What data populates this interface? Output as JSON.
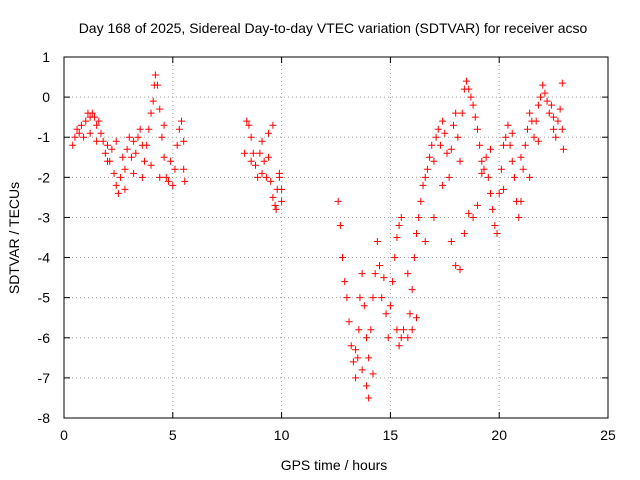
{
  "chart_data": {
    "type": "scatter",
    "title": "Day 168 of 2025, Sidereal Day-to-day VTEC variation (SDTVAR) for receiver acso",
    "xlabel": "GPS time / hours",
    "ylabel": "SDTVAR / TECUs",
    "xlim": [
      0,
      25
    ],
    "ylim": [
      -8,
      1
    ],
    "x_ticks": [
      "0",
      "5",
      "10",
      "15",
      "20",
      "25"
    ],
    "y_ticks": [
      "-8",
      "-7",
      "-6",
      "-5",
      "-4",
      "-3",
      "-2",
      "-1",
      "0",
      "1"
    ],
    "x_tick_values": [
      0,
      5,
      10,
      15,
      20,
      25
    ],
    "y_tick_values": [
      -8,
      -7,
      -6,
      -5,
      -4,
      -3,
      -2,
      -1,
      0,
      1
    ],
    "grid": true,
    "legend": "none",
    "marker": "+",
    "color": "#ff0000",
    "series": [
      {
        "points": [
          [
            0.4,
            -1.2
          ],
          [
            0.5,
            -1.0
          ],
          [
            0.6,
            -0.8
          ],
          [
            0.7,
            -0.9
          ],
          [
            0.8,
            -0.7
          ],
          [
            0.9,
            -1.0
          ],
          [
            1.0,
            -0.6
          ],
          [
            1.1,
            -0.4
          ],
          [
            1.2,
            -0.5
          ],
          [
            1.3,
            -0.4
          ],
          [
            1.4,
            -0.5
          ],
          [
            1.5,
            -0.7
          ],
          [
            1.6,
            -0.6
          ],
          [
            1.7,
            -0.9
          ],
          [
            1.8,
            -1.1
          ],
          [
            1.9,
            -1.4
          ],
          [
            2.0,
            -1.2
          ],
          [
            2.1,
            -1.6
          ],
          [
            2.2,
            -1.3
          ],
          [
            2.3,
            -1.9
          ],
          [
            2.4,
            -2.2
          ],
          [
            2.5,
            -2.4
          ],
          [
            2.6,
            -2.0
          ],
          [
            2.7,
            -1.5
          ],
          [
            2.8,
            -1.8
          ],
          [
            2.9,
            -1.3
          ],
          [
            3.0,
            -1.0
          ],
          [
            3.1,
            -1.5
          ],
          [
            3.2,
            -1.9
          ],
          [
            3.3,
            -1.4
          ],
          [
            3.4,
            -1.0
          ],
          [
            3.5,
            -0.8
          ],
          [
            3.6,
            -1.2
          ],
          [
            3.7,
            -1.6
          ],
          [
            3.8,
            -1.2
          ],
          [
            3.9,
            -0.8
          ],
          [
            4.0,
            -0.4
          ],
          [
            4.1,
            -0.1
          ],
          [
            4.15,
            0.3
          ],
          [
            4.2,
            0.55
          ],
          [
            4.3,
            0.3
          ],
          [
            4.4,
            -0.3
          ],
          [
            4.5,
            -1.0
          ],
          [
            4.6,
            -1.5
          ],
          [
            4.7,
            -2.0
          ],
          [
            4.8,
            -2.1
          ],
          [
            4.9,
            -1.6
          ],
          [
            5.0,
            -2.2
          ],
          [
            5.1,
            -1.8
          ],
          [
            5.2,
            -1.2
          ],
          [
            5.3,
            -0.8
          ],
          [
            5.4,
            -0.6
          ],
          [
            5.5,
            -1.1
          ],
          [
            5.5,
            -1.8
          ],
          [
            5.55,
            -2.1
          ],
          [
            1.2,
            -0.9
          ],
          [
            1.5,
            -1.1
          ],
          [
            2.0,
            -1.6
          ],
          [
            2.4,
            -1.1
          ],
          [
            2.8,
            -2.3
          ],
          [
            3.2,
            -1.1
          ],
          [
            3.6,
            -2.0
          ],
          [
            4.0,
            -1.7
          ],
          [
            4.4,
            -2.0
          ],
          [
            4.6,
            -0.7
          ],
          [
            8.4,
            -0.6
          ],
          [
            8.5,
            -0.7
          ],
          [
            8.6,
            -1.0
          ],
          [
            8.7,
            -1.4
          ],
          [
            8.8,
            -1.7
          ],
          [
            8.9,
            -2.0
          ],
          [
            9.0,
            -1.4
          ],
          [
            9.1,
            -1.1
          ],
          [
            9.2,
            -1.6
          ],
          [
            9.3,
            -2.0
          ],
          [
            9.4,
            -1.5
          ],
          [
            9.5,
            -2.1
          ],
          [
            9.6,
            -2.5
          ],
          [
            9.7,
            -2.7
          ],
          [
            9.8,
            -2.3
          ],
          [
            9.9,
            -2.0
          ],
          [
            10.0,
            -2.3
          ],
          [
            9.4,
            -0.9
          ],
          [
            9.6,
            -0.7
          ],
          [
            9.75,
            -2.8
          ],
          [
            8.3,
            -1.4
          ],
          [
            8.6,
            -1.6
          ],
          [
            9.1,
            -1.9
          ],
          [
            9.9,
            -1.9
          ],
          [
            10.0,
            -2.6
          ],
          [
            12.6,
            -2.6
          ],
          [
            12.7,
            -3.2
          ],
          [
            12.8,
            -4.0
          ],
          [
            12.9,
            -4.6
          ],
          [
            13.0,
            -5.0
          ],
          [
            13.1,
            -5.6
          ],
          [
            13.2,
            -6.2
          ],
          [
            13.3,
            -6.6
          ],
          [
            13.4,
            -7.0
          ],
          [
            13.5,
            -6.5
          ],
          [
            13.55,
            -5.8
          ],
          [
            13.6,
            -5.0
          ],
          [
            13.7,
            -4.4
          ],
          [
            13.8,
            -5.2
          ],
          [
            13.9,
            -6.0
          ],
          [
            14.0,
            -6.5
          ],
          [
            14.1,
            -5.8
          ],
          [
            14.2,
            -5.0
          ],
          [
            14.3,
            -4.4
          ],
          [
            14.4,
            -3.6
          ],
          [
            14.5,
            -4.2
          ],
          [
            14.6,
            -5.0
          ],
          [
            14.7,
            -4.5
          ],
          [
            14.8,
            -5.4
          ],
          [
            14.9,
            -6.0
          ],
          [
            15.0,
            -5.2
          ],
          [
            15.1,
            -4.6
          ],
          [
            15.2,
            -4.0
          ],
          [
            15.3,
            -3.5
          ],
          [
            15.4,
            -3.2
          ],
          [
            15.5,
            -3.0
          ],
          [
            15.3,
            -5.8
          ],
          [
            15.4,
            -6.2
          ],
          [
            15.5,
            -6.0
          ],
          [
            15.6,
            -5.8
          ],
          [
            15.8,
            -6.0
          ],
          [
            15.9,
            -5.4
          ],
          [
            16.0,
            -4.8
          ],
          [
            16.1,
            -4.0
          ],
          [
            16.2,
            -3.4
          ],
          [
            16.3,
            -3.0
          ],
          [
            16.4,
            -2.6
          ],
          [
            16.5,
            -2.2
          ],
          [
            16.6,
            -2.0
          ],
          [
            16.7,
            -1.8
          ],
          [
            16.8,
            -1.5
          ],
          [
            16.9,
            -1.2
          ],
          [
            17.0,
            -1.6
          ],
          [
            17.1,
            -1.0
          ],
          [
            17.2,
            -0.8
          ],
          [
            17.3,
            -1.2
          ],
          [
            17.4,
            -0.6
          ],
          [
            17.5,
            -0.9
          ],
          [
            17.6,
            -1.4
          ],
          [
            17.7,
            -2.0
          ],
          [
            17.8,
            -1.3
          ],
          [
            17.9,
            -0.7
          ],
          [
            18.0,
            -0.4
          ],
          [
            18.1,
            -1.0
          ],
          [
            18.2,
            -1.6
          ],
          [
            18.3,
            -0.4
          ],
          [
            18.4,
            0.2
          ],
          [
            18.5,
            0.4
          ],
          [
            18.6,
            0.2
          ],
          [
            18.7,
            0.0
          ],
          [
            18.8,
            -0.2
          ],
          [
            18.9,
            -0.5
          ],
          [
            19.0,
            -0.8
          ],
          [
            19.1,
            -1.2
          ],
          [
            19.2,
            -1.6
          ],
          [
            19.3,
            -1.8
          ],
          [
            19.4,
            -1.5
          ],
          [
            19.5,
            -2.0
          ],
          [
            19.6,
            -2.4
          ],
          [
            19.7,
            -2.8
          ],
          [
            19.8,
            -3.2
          ],
          [
            19.9,
            -3.4
          ],
          [
            20.0,
            -2.4
          ],
          [
            20.1,
            -1.8
          ],
          [
            20.2,
            -1.2
          ],
          [
            20.3,
            -1.0
          ],
          [
            20.4,
            -0.7
          ],
          [
            20.5,
            -1.2
          ],
          [
            20.6,
            -1.6
          ],
          [
            20.7,
            -2.0
          ],
          [
            20.8,
            -2.6
          ],
          [
            20.9,
            -3.0
          ],
          [
            21.0,
            -2.6
          ],
          [
            21.1,
            -1.8
          ],
          [
            21.2,
            -1.2
          ],
          [
            21.3,
            -0.8
          ],
          [
            21.4,
            -0.4
          ],
          [
            21.5,
            -0.6
          ],
          [
            21.6,
            -1.0
          ],
          [
            21.7,
            -0.6
          ],
          [
            21.8,
            -0.2
          ],
          [
            21.9,
            0.0
          ],
          [
            22.0,
            0.3
          ],
          [
            22.1,
            0.1
          ],
          [
            22.2,
            -0.1
          ],
          [
            22.3,
            -0.4
          ],
          [
            22.4,
            -0.2
          ],
          [
            22.5,
            -0.8
          ],
          [
            22.6,
            -1.0
          ],
          [
            22.7,
            -0.6
          ],
          [
            22.8,
            -0.3
          ],
          [
            22.9,
            0.35
          ],
          [
            22.9,
            -0.8
          ],
          [
            22.95,
            -1.3
          ],
          [
            22.5,
            -0.5
          ],
          [
            13.9,
            -7.2
          ],
          [
            14.0,
            -7.5
          ],
          [
            13.4,
            -6.3
          ],
          [
            13.7,
            -6.8
          ],
          [
            14.2,
            -6.9
          ],
          [
            16.2,
            -5.5
          ],
          [
            16.0,
            -5.8
          ],
          [
            15.8,
            -4.4
          ],
          [
            16.6,
            -3.6
          ],
          [
            17.0,
            -3.0
          ],
          [
            17.4,
            -2.2
          ],
          [
            17.8,
            -3.6
          ],
          [
            18.0,
            -4.2
          ],
          [
            18.2,
            -4.3
          ],
          [
            18.4,
            -3.4
          ],
          [
            18.6,
            -2.9
          ],
          [
            18.8,
            -3.0
          ],
          [
            19.0,
            -2.7
          ],
          [
            19.2,
            -1.9
          ],
          [
            19.6,
            -1.3
          ],
          [
            20.2,
            -2.3
          ],
          [
            20.6,
            -0.9
          ],
          [
            21.0,
            -1.5
          ],
          [
            21.4,
            -2.0
          ],
          [
            21.8,
            -1.1
          ]
        ]
      }
    ]
  }
}
